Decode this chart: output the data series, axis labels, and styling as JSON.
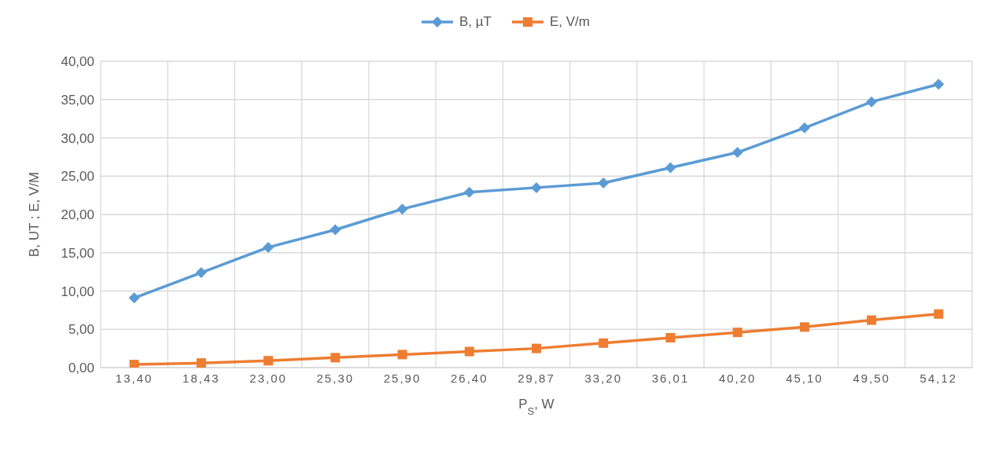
{
  "chart_data": {
    "type": "line",
    "xlabel": "P$_{S}$, W",
    "ylabel": "B, UT ; E, V/M",
    "categories": [
      "13,40",
      "18,43",
      "23,00",
      "25,30",
      "25,90",
      "26,40",
      "29,87",
      "33,20",
      "36,01",
      "40,20",
      "45,10",
      "49,50",
      "54,12"
    ],
    "series": [
      {
        "name": "B, µT",
        "color": "#5b9bd5",
        "marker": "diamond",
        "values": [
          9.1,
          12.4,
          15.7,
          18.0,
          20.7,
          22.9,
          23.5,
          24.1,
          26.1,
          28.1,
          31.3,
          34.7,
          37.0
        ]
      },
      {
        "name": "E, V/m",
        "color": "#ed7d31",
        "marker": "square",
        "values": [
          0.4,
          0.6,
          0.9,
          1.3,
          1.7,
          2.1,
          2.5,
          3.2,
          3.9,
          4.6,
          5.3,
          6.2,
          7.0
        ]
      }
    ],
    "ylim": [
      0,
      40
    ],
    "yticks": [
      {
        "value": 0,
        "label": "0,00"
      },
      {
        "value": 5,
        "label": "5,00"
      },
      {
        "value": 10,
        "label": "10,00"
      },
      {
        "value": 15,
        "label": "15,00"
      },
      {
        "value": 20,
        "label": "20,00"
      },
      {
        "value": 25,
        "label": "25,00"
      },
      {
        "value": 30,
        "label": "30,00"
      },
      {
        "value": 35,
        "label": "35,00"
      },
      {
        "value": 40,
        "label": "40,00"
      }
    ],
    "grid": true,
    "legend": "top",
    "line_style": "solid"
  }
}
